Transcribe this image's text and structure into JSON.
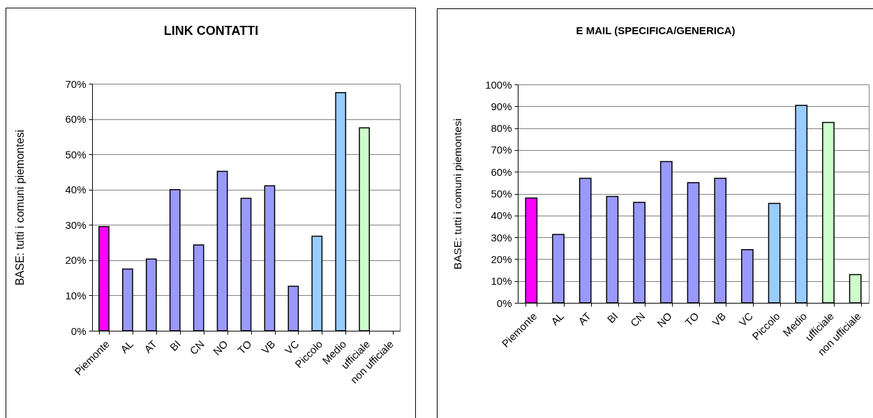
{
  "chart_data": [
    {
      "type": "bar",
      "title": "LINK CONTATTI",
      "ylabel": "BASE: tutti i comuni piemontesi",
      "categories": [
        "Piemonte",
        "AL",
        "AT",
        "BI",
        "CN",
        "NO",
        "TO",
        "VB",
        "VC",
        "Piccolo",
        "Medio",
        "ufficiale",
        "non ufficiale"
      ],
      "values": [
        29.5,
        17.5,
        20.3,
        40,
        24.3,
        45.2,
        37.5,
        41.1,
        12.6,
        26.8,
        67.5,
        57.5,
        null
      ],
      "colors": [
        "#ff00ff",
        "#9999ff",
        "#9999ff",
        "#9999ff",
        "#9999ff",
        "#9999ff",
        "#9999ff",
        "#9999ff",
        "#9999ff",
        "#99ccff",
        "#99ccff",
        "#ccffcc",
        "#ccffcc"
      ],
      "ylim": [
        0,
        70
      ],
      "yticks": [
        {
          "value": 0,
          "label": "0%"
        },
        {
          "value": 10,
          "label": "10%"
        },
        {
          "value": 20,
          "label": "20%"
        },
        {
          "value": 30,
          "label": "30%"
        },
        {
          "value": 40,
          "label": "40%"
        },
        {
          "value": 50,
          "label": "50%"
        },
        {
          "value": 60,
          "label": "60%"
        },
        {
          "value": 70,
          "label": "70%"
        }
      ],
      "grid": "y"
    },
    {
      "type": "bar",
      "title": "E MAIL (SPECIFICA/GENERICA)",
      "ylabel": "BASE: tutti i comuni piemontesi",
      "categories": [
        "Piemonte",
        "AL",
        "AT",
        "BI",
        "CN",
        "NO",
        "TO",
        "VB",
        "VC",
        "Piccolo",
        "Medio",
        "ufficiale",
        "non ufficiale"
      ],
      "values": [
        48,
        31.3,
        57,
        48.7,
        46,
        64.7,
        55,
        57,
        24.4,
        45.5,
        90.4,
        82.6,
        12.9
      ],
      "colors": [
        "#ff00ff",
        "#9999ff",
        "#9999ff",
        "#9999ff",
        "#9999ff",
        "#9999ff",
        "#9999ff",
        "#9999ff",
        "#9999ff",
        "#99ccff",
        "#99ccff",
        "#ccffcc",
        "#ccffcc"
      ],
      "ylim": [
        0,
        100
      ],
      "yticks": [
        {
          "value": 0,
          "label": "0%"
        },
        {
          "value": 10,
          "label": "10%"
        },
        {
          "value": 20,
          "label": "20%"
        },
        {
          "value": 30,
          "label": "30%"
        },
        {
          "value": 40,
          "label": "40%"
        },
        {
          "value": 50,
          "label": "50%"
        },
        {
          "value": 60,
          "label": "60%"
        },
        {
          "value": 70,
          "label": "70%"
        },
        {
          "value": 80,
          "label": "80%"
        },
        {
          "value": 90,
          "label": "90%"
        },
        {
          "value": 100,
          "label": "100%"
        }
      ],
      "grid": "y"
    }
  ]
}
